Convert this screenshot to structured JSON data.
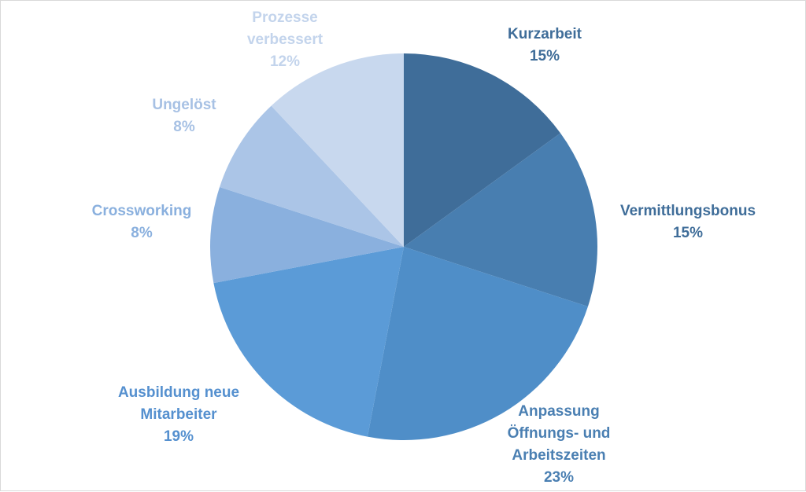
{
  "chart_data": {
    "type": "pie",
    "title": "",
    "slices": [
      {
        "label_lines": [
          "Kurzarbeit"
        ],
        "value": 15,
        "value_label": "15%",
        "color": "#3f6d99",
        "label_color": "#3f6d99"
      },
      {
        "label_lines": [
          "Vermittlungsbonus"
        ],
        "value": 15,
        "value_label": "15%",
        "color": "#487eb0",
        "label_color": "#3f6d99"
      },
      {
        "label_lines": [
          "Anpassung",
          "Öffnungs- und",
          "Arbeitszeiten"
        ],
        "value": 23,
        "value_label": "23%",
        "color": "#4f8ec8",
        "label_color": "#4a7fb2"
      },
      {
        "label_lines": [
          "Ausbildung neue",
          "Mitarbeiter"
        ],
        "value": 19,
        "value_label": "19%",
        "color": "#5b9bd7",
        "label_color": "#5590cf"
      },
      {
        "label_lines": [
          "Crossworking"
        ],
        "value": 8,
        "value_label": "8%",
        "color": "#8ab0de",
        "label_color": "#8ab0de"
      },
      {
        "label_lines": [
          "Ungelöst"
        ],
        "value": 8,
        "value_label": "8%",
        "color": "#abc5e7",
        "label_color": "#a7c1e4"
      },
      {
        "label_lines": [
          "Prozesse",
          "verbessert"
        ],
        "value": 12,
        "value_label": "12%",
        "color": "#c8d8ee",
        "label_color": "#c3d4ec"
      }
    ]
  }
}
